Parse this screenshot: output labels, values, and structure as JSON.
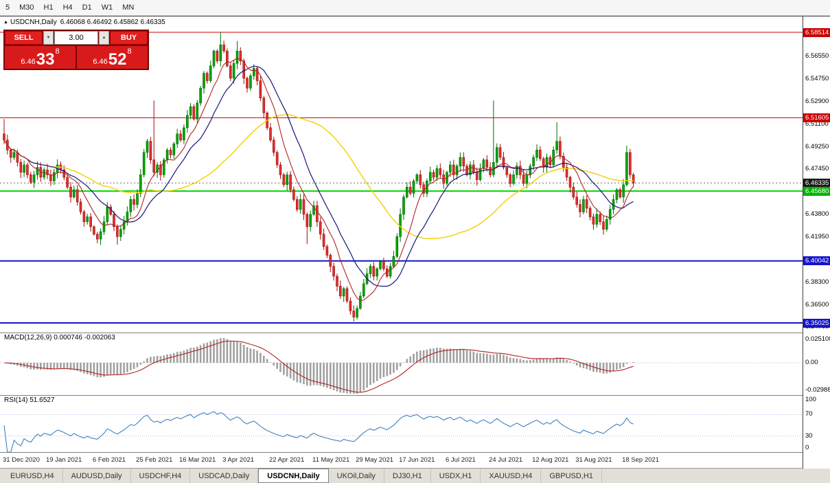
{
  "toolbar": {
    "timeframes": [
      "5",
      "M30",
      "H1",
      "H4",
      "D1",
      "W1",
      "MN"
    ]
  },
  "chart": {
    "symbol_header": {
      "collapse_arrow": "▲",
      "title": "USDCNH,Daily",
      "ohlc": "6.46068 6.46492 6.45862 6.46335"
    },
    "trade_panel": {
      "sell_label": "SELL",
      "buy_label": "BUY",
      "volume": "3.00",
      "spin_down": "▼",
      "spin_up": "▲",
      "bid": {
        "prefix": "6.46",
        "big": "33",
        "sup": "8"
      },
      "ask": {
        "prefix": "6.46",
        "big": "52",
        "sup": "8"
      }
    },
    "colors": {
      "up": "#00A600",
      "up_stroke": "#006A00",
      "down": "#E03030",
      "down_stroke": "#9E0B0B",
      "line_red": "#CC0000",
      "line_green": "#00D800",
      "line_blue": "#1414CC",
      "bid_badge": "#1A1A1A"
    },
    "range": {
      "max": 6.5979,
      "min": 6.3425
    },
    "hlines": [
      {
        "price": 6.58514,
        "color": "#CC0000",
        "width": 1
      },
      {
        "price": 6.51605,
        "color": "#CC0000",
        "width": 1
      },
      {
        "price": 6.4568,
        "color": "#00D800",
        "width": 2
      },
      {
        "price": 6.40042,
        "color": "#1414CC",
        "width": 2
      },
      {
        "price": 6.35025,
        "color": "#1414CC",
        "width": 2
      }
    ],
    "bid_line": {
      "price": 6.46335
    },
    "price_axis": {
      "labels": [
        {
          "text": "6.56550",
          "price": 6.5655
        },
        {
          "text": "6.54750",
          "price": 6.5475
        },
        {
          "text": "6.52900",
          "price": 6.529
        },
        {
          "text": "6.51100",
          "price": 6.511
        },
        {
          "text": "6.49250",
          "price": 6.4925
        },
        {
          "text": "6.47450",
          "price": 6.4745
        },
        {
          "text": "6.45600",
          "price": 6.456
        },
        {
          "text": "6.43800",
          "price": 6.438
        },
        {
          "text": "6.41950",
          "price": 6.4195
        },
        {
          "text": "6.38300",
          "price": 6.383
        },
        {
          "text": "6.36500",
          "price": 6.365
        },
        {
          "text": "6.34700",
          "price": 6.347
        }
      ],
      "badges": [
        {
          "text": "6.58514",
          "price": 6.58514,
          "color": "#CC0000"
        },
        {
          "text": "6.51605",
          "price": 6.51605,
          "color": "#CC0000"
        },
        {
          "text": "6.46335",
          "price": 6.46335,
          "color": "#1A1A1A"
        },
        {
          "text": "6.45680",
          "price": 6.4568,
          "color": "#00B400"
        },
        {
          "text": "6.40042",
          "price": 6.40042,
          "color": "#1414CC"
        },
        {
          "text": "6.35025",
          "price": 6.35025,
          "color": "#1414CC"
        }
      ]
    },
    "ma": [
      {
        "period": 45,
        "color": "#F0D000",
        "width": 1.4
      },
      {
        "period": 16,
        "color": "#14147A",
        "width": 1.2
      },
      {
        "period": 8,
        "color": "#B22222",
        "width": 1.1
      }
    ],
    "candles": {
      "first_open": 6.503,
      "closes": [
        6.498,
        6.49,
        6.484,
        6.488,
        6.48,
        6.472,
        6.478,
        6.47,
        6.464,
        6.47,
        6.476,
        6.468,
        6.474,
        6.47,
        6.465,
        6.472,
        6.478,
        6.474,
        6.468,
        6.46,
        6.452,
        6.458,
        6.448,
        6.44,
        6.432,
        6.436,
        6.428,
        6.422,
        6.418,
        6.424,
        6.432,
        6.444,
        6.438,
        6.428,
        6.42,
        6.426,
        6.432,
        6.44,
        6.45,
        6.446,
        6.455,
        6.47,
        6.488,
        6.497,
        6.482,
        6.472,
        6.478,
        6.47,
        6.482,
        6.49,
        6.486,
        6.495,
        6.503,
        6.498,
        6.508,
        6.518,
        6.525,
        6.515,
        6.528,
        6.54,
        6.552,
        6.546,
        6.558,
        6.57,
        6.562,
        6.575,
        6.57,
        6.558,
        6.548,
        6.56,
        6.57,
        6.562,
        6.548,
        6.54,
        6.55,
        6.556,
        6.546,
        6.532,
        6.52,
        6.508,
        6.498,
        6.488,
        6.478,
        6.47,
        6.462,
        6.47,
        6.458,
        6.45,
        6.442,
        6.45,
        6.438,
        6.428,
        6.438,
        6.445,
        6.432,
        6.422,
        6.412,
        6.405,
        6.396,
        6.388,
        6.38,
        6.372,
        6.378,
        6.368,
        6.36,
        6.355,
        6.362,
        6.372,
        6.382,
        6.39,
        6.396,
        6.388,
        6.394,
        6.4,
        6.394,
        6.388,
        6.396,
        6.404,
        6.42,
        6.438,
        6.452,
        6.46,
        6.455,
        6.465,
        6.47,
        6.462,
        6.455,
        6.465,
        6.472,
        6.468,
        6.475,
        6.47,
        6.463,
        6.472,
        6.478,
        6.47,
        6.477,
        6.484,
        6.477,
        6.47,
        6.478,
        6.472,
        6.466,
        6.475,
        6.482,
        6.476,
        6.47,
        6.48,
        6.492,
        6.484,
        6.476,
        6.47,
        6.463,
        6.47,
        6.477,
        6.47,
        6.463,
        6.47,
        6.477,
        6.484,
        6.49,
        6.483,
        6.476,
        6.484,
        6.478,
        6.49,
        6.497,
        6.485,
        6.476,
        6.468,
        6.46,
        6.452,
        6.446,
        6.44,
        6.45,
        6.443,
        6.436,
        6.43,
        6.438,
        6.432,
        6.426,
        6.434,
        6.442,
        6.45,
        6.458,
        6.452,
        6.462,
        6.488,
        6.47,
        6.46335
      ],
      "spikes": [
        {
          "i": 0,
          "high": 6.515
        },
        {
          "i": 28,
          "low": 6.4145
        },
        {
          "i": 34,
          "low": 6.4135
        },
        {
          "i": 45,
          "high": 6.53
        },
        {
          "i": 65,
          "high": 6.5852
        },
        {
          "i": 70,
          "high": 6.578
        },
        {
          "i": 91,
          "low": 6.414
        },
        {
          "i": 105,
          "low": 6.3515
        },
        {
          "i": 147,
          "high": 6.53
        },
        {
          "i": 166,
          "high": 6.5125
        },
        {
          "i": 180,
          "low": 6.4215
        },
        {
          "i": 187,
          "high": 6.4935
        }
      ]
    }
  },
  "macd": {
    "label": "MACD(12,26,9) 0.000746 -0.002063",
    "fast": 12,
    "slow": 26,
    "signal_period": 9,
    "axis": [
      "0.025108",
      "0.00",
      "-0.029888"
    ],
    "axis_max": 0.025108,
    "hist_color": "#A0A0A0",
    "line_color": "#B22222"
  },
  "rsi": {
    "label": "RSI(14) 51.6527",
    "period": 14,
    "axis": [
      100,
      70,
      30,
      0
    ],
    "levels": [
      70,
      30
    ],
    "color": "#2E75B6"
  },
  "time_axis": {
    "labels": [
      {
        "text": "31 Dec 2020",
        "i": 0
      },
      {
        "text": "19 Jan 2021",
        "i": 13
      },
      {
        "text": "6 Feb 2021",
        "i": 27
      },
      {
        "text": "25 Feb 2021",
        "i": 40
      },
      {
        "text": "16 Mar 2021",
        "i": 53
      },
      {
        "text": "3 Apr 2021",
        "i": 66
      },
      {
        "text": "22 Apr 2021",
        "i": 80
      },
      {
        "text": "11 May 2021",
        "i": 93
      },
      {
        "text": "29 May 2021",
        "i": 106
      },
      {
        "text": "17 Jun 2021",
        "i": 119
      },
      {
        "text": "6 Jul 2021",
        "i": 133
      },
      {
        "text": "24 Jul 2021",
        "i": 146
      },
      {
        "text": "12 Aug 2021",
        "i": 159
      },
      {
        "text": "31 Aug 2021",
        "i": 172
      },
      {
        "text": "18 Sep 2021",
        "i": 186
      }
    ]
  },
  "tabs": {
    "items": [
      "EURUSD,H4",
      "AUDUSD,Daily",
      "USDCHF,H4",
      "USDCAD,Daily",
      "USDCNH,Daily",
      "UKOil,Daily",
      "DJ30,H1",
      "USDX,H1",
      "XAUUSD,H4",
      "GBPUSD,H1"
    ],
    "active": "USDCNH,Daily"
  }
}
